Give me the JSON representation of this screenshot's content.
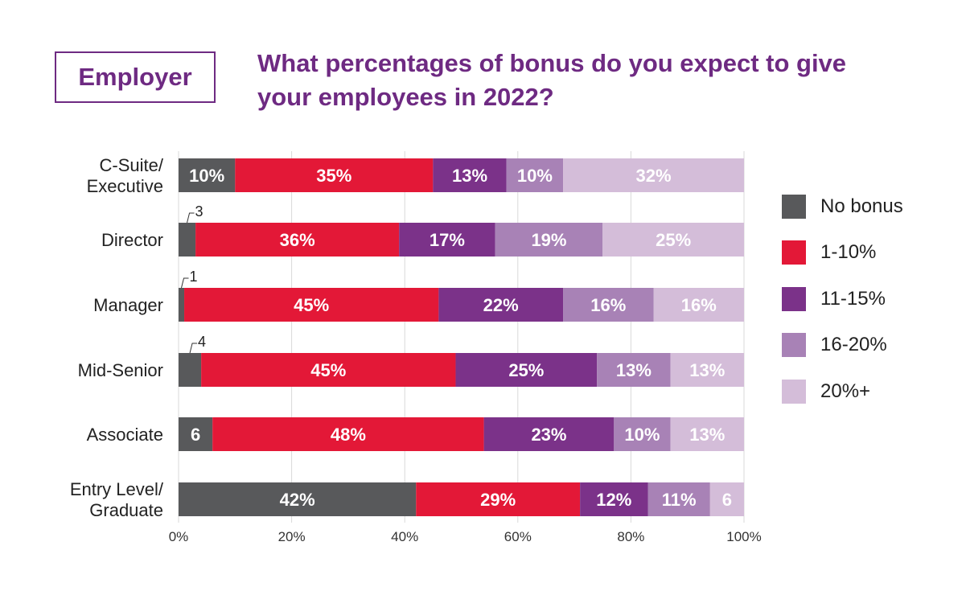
{
  "badge": {
    "label": "Employer"
  },
  "title": {
    "line1": "What percentages of bonus do you expect to give",
    "line2": "your employees in 2022?"
  },
  "colors": {
    "no_bonus": "#58595b",
    "1_10": "#e31837",
    "11_15": "#7b3289",
    "16_20": "#a882b6",
    "20_plus": "#d4bdd9",
    "title": "#6e2a82"
  },
  "chart_data": {
    "type": "bar",
    "orientation": "horizontal",
    "stacked": true,
    "categories": [
      [
        "C-Suite/",
        "Executive"
      ],
      [
        "Director"
      ],
      [
        "Manager"
      ],
      [
        "Mid-Senior"
      ],
      [
        "Associate"
      ],
      [
        "Entry Level/",
        "Graduate"
      ]
    ],
    "series": [
      {
        "name": "No bonus",
        "color": "#58595b",
        "values": [
          10,
          3,
          1,
          4,
          6,
          42
        ]
      },
      {
        "name": "1-10%",
        "color": "#e31837",
        "values": [
          35,
          36,
          45,
          45,
          48,
          29
        ]
      },
      {
        "name": "11-15%",
        "color": "#7b3289",
        "values": [
          13,
          17,
          22,
          25,
          23,
          12
        ]
      },
      {
        "name": "16-20%",
        "color": "#a882b6",
        "values": [
          10,
          19,
          16,
          13,
          10,
          11
        ]
      },
      {
        "name": "20%+",
        "color": "#d4bdd9",
        "values": [
          32,
          25,
          16,
          13,
          13,
          6
        ]
      }
    ],
    "data_labels": [
      [
        "10%",
        "35%",
        "13%",
        "10%",
        "32%"
      ],
      [
        "3",
        "36%",
        "17%",
        "19%",
        "25%"
      ],
      [
        "1",
        "45%",
        "22%",
        "16%",
        "16%"
      ],
      [
        "4",
        "45%",
        "25%",
        "13%",
        "13%"
      ],
      [
        "6",
        "48%",
        "23%",
        "10%",
        "13%"
      ],
      [
        "42%",
        "29%",
        "12%",
        "11%",
        "6"
      ]
    ],
    "x_ticks": [
      "0%",
      "20%",
      "40%",
      "60%",
      "80%",
      "100%"
    ],
    "xlim": [
      0,
      100
    ],
    "grid": true,
    "legend_position": "right"
  }
}
